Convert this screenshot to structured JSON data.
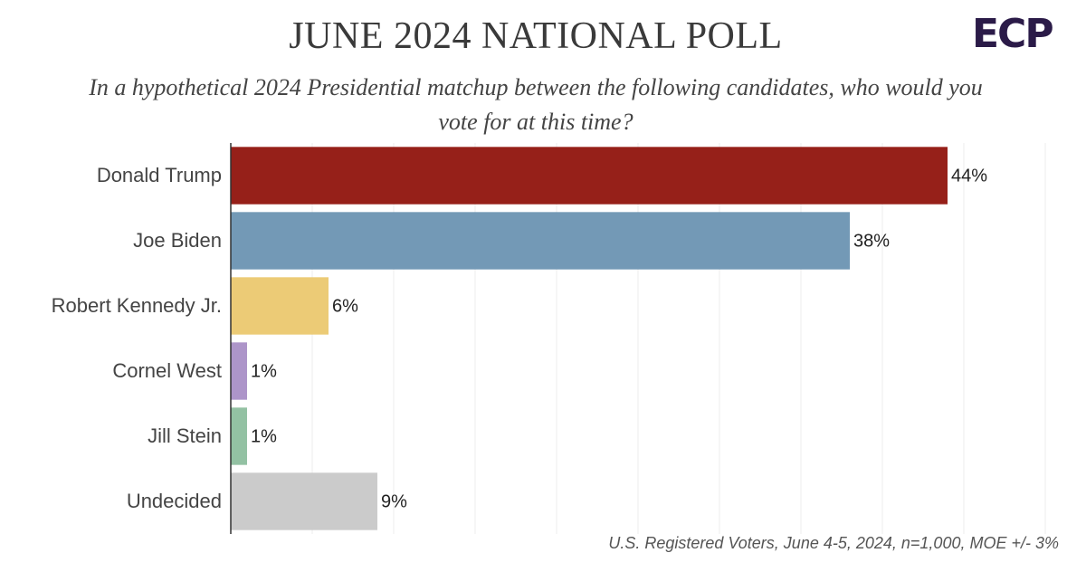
{
  "chart_data": {
    "type": "bar",
    "orientation": "horizontal",
    "title": "JUNE 2024 NATIONAL POLL",
    "subtitle": "In a hypothetical 2024 Presidential matchup between the following candidates, who would you vote for at this time?",
    "logo": "ECP",
    "categories": [
      "Donald Trump",
      "Joe Biden",
      "Robert Kennedy Jr.",
      "Cornel West",
      "Jill Stein",
      "Undecided"
    ],
    "values": [
      44,
      38,
      6,
      1,
      1,
      9
    ],
    "value_labels": [
      "44%",
      "38%",
      "6%",
      "1%",
      "1%",
      "9%"
    ],
    "colors": [
      "#962019",
      "#7399b6",
      "#eccb76",
      "#ad95c9",
      "#93c1a3",
      "#cbcbcb"
    ],
    "xlim": [
      0,
      50
    ],
    "xticks": [
      0,
      5,
      10,
      15,
      20,
      25,
      30,
      35,
      40,
      45,
      50
    ],
    "grid": true,
    "note": "U.S. Registered Voters, June 4-5, 2024, n=1,000, MOE +/- 3%"
  }
}
